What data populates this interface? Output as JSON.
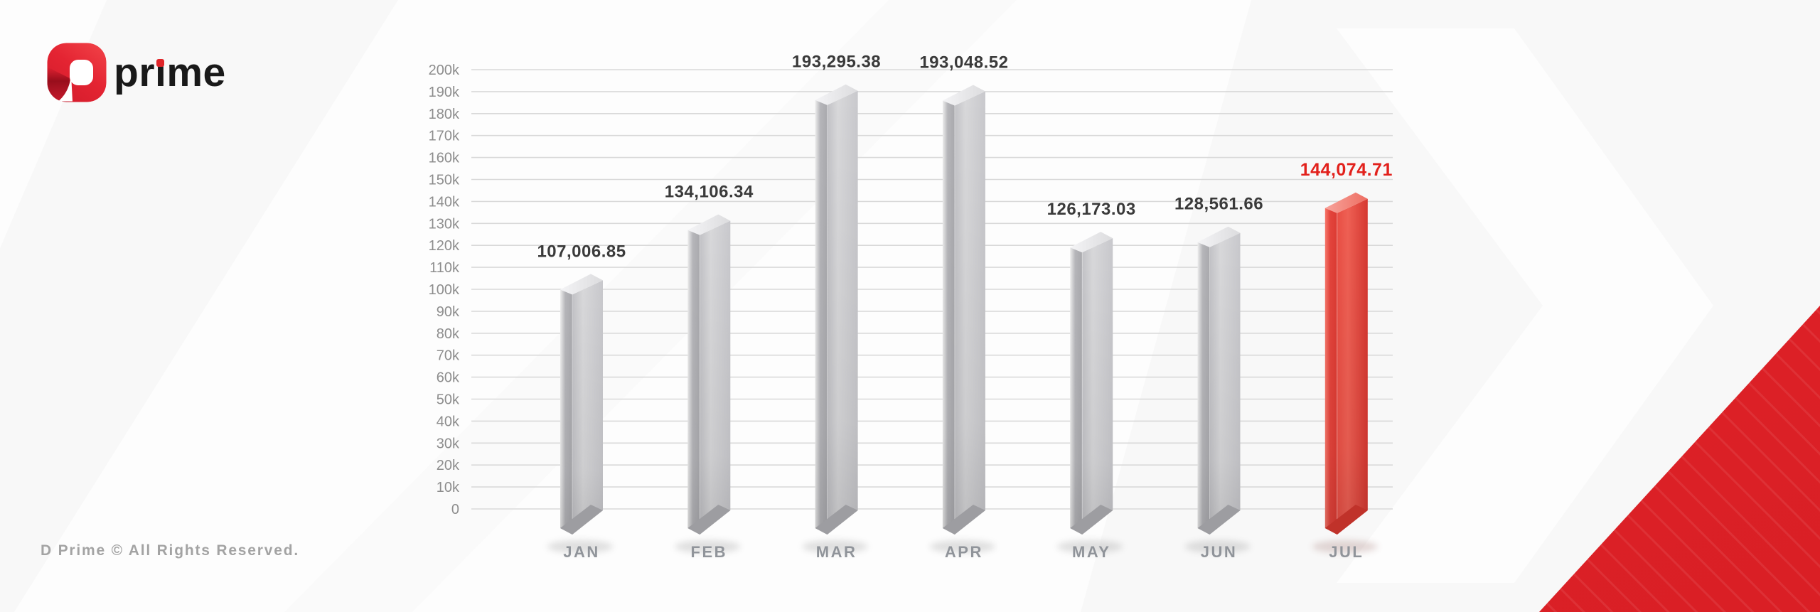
{
  "brand": {
    "logo_text": "prime",
    "logo_mark": "d-prime-logo"
  },
  "footer": {
    "text": "D Prime © All Rights Reserved."
  },
  "chart_data": {
    "type": "bar",
    "title": "",
    "categories": [
      "JAN",
      "FEB",
      "MAR",
      "APR",
      "MAY",
      "JUN",
      "JUL"
    ],
    "values": [
      107006.85,
      134106.34,
      193295.38,
      193048.52,
      126173.03,
      128561.66,
      144074.71
    ],
    "value_labels": [
      "107,006.85",
      "134,106.34",
      "193,295.38",
      "193,048.52",
      "126,173.03",
      "128,561.66",
      "144,074.71"
    ],
    "highlight_index": 6,
    "xlabel": "",
    "ylabel": "",
    "ylim": [
      0,
      200000
    ],
    "ytick_step": 10000,
    "ytick_labels": [
      "0",
      "10k",
      "20k",
      "30k",
      "40k",
      "50k",
      "60k",
      "70k",
      "80k",
      "90k",
      "100k",
      "110k",
      "120k",
      "130k",
      "140k",
      "150k",
      "160k",
      "170k",
      "180k",
      "190k",
      "200k"
    ],
    "grid": true,
    "legend": false,
    "colors": {
      "value_label": "#3a3a3a",
      "highlight_value_label": "#e2211c",
      "axis_text": "#8d8d8d",
      "month_text": "#90949a",
      "gridline": "#d9d9d9",
      "bar": {
        "left": [
          "#eeeeee",
          "#b6b6ba",
          "#aaaaae"
        ],
        "right": [
          "#c2c2c6",
          "#d8d8da",
          "#c8c8cc"
        ],
        "top": [
          "#f4f4f6",
          "#dcdcde"
        ],
        "foot": "#9d9da1",
        "shadow": "#777777"
      },
      "highlight": {
        "left": [
          "#f8786c",
          "#e4443c",
          "#dd3b33"
        ],
        "right": [
          "#e94e44",
          "#ef6054",
          "#d63831"
        ],
        "top": [
          "#f7a39b",
          "#ee6e62"
        ],
        "foot": "#c0322a",
        "shadow": "#8a5550"
      },
      "corner_triangle": "#dc2026",
      "corner_stripe": "rgba(255,255,255,0.10)",
      "logo_red": "#e32330",
      "logo_text_color": "#191919"
    }
  }
}
